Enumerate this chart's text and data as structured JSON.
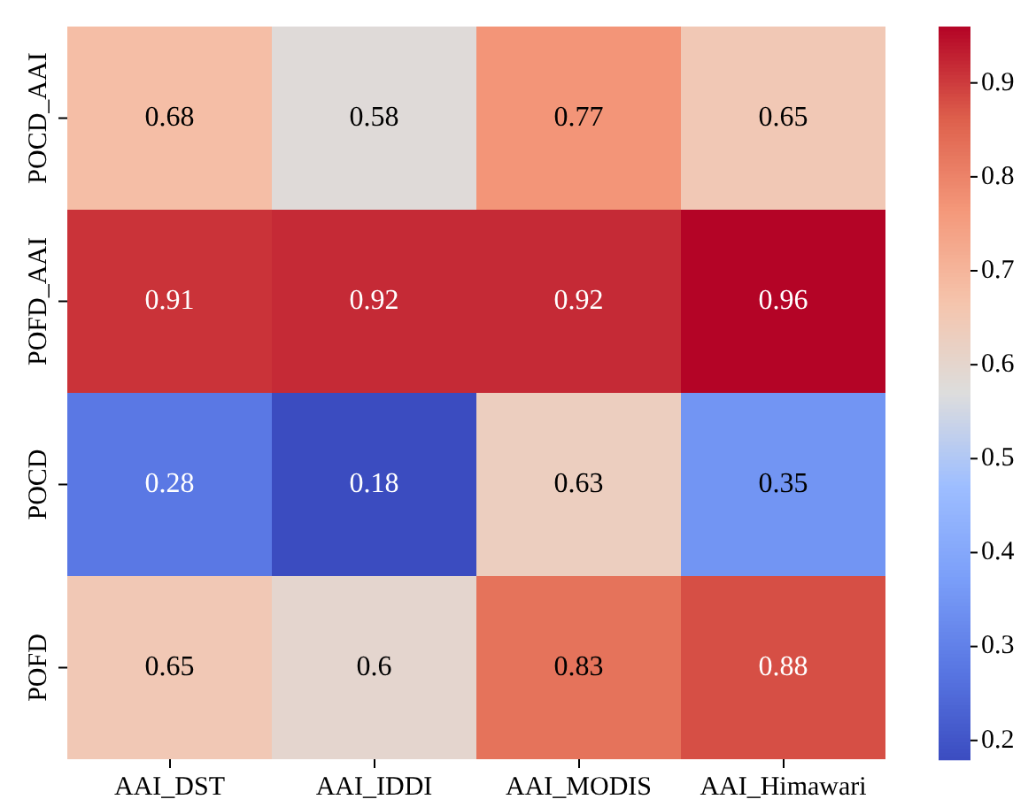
{
  "chart_data": {
    "type": "heatmap",
    "categories": [
      "AAI_DST",
      "AAI_IDDI",
      "AAI_MODIS",
      "AAI_Himawari"
    ],
    "y_categories": [
      "POCD_AAI",
      "POFD_AAI",
      "POCD",
      "POFD"
    ],
    "cells": [
      [
        0.68,
        0.58,
        0.77,
        0.65
      ],
      [
        0.91,
        0.92,
        0.92,
        0.96
      ],
      [
        0.28,
        0.18,
        0.63,
        0.35
      ],
      [
        0.65,
        0.6,
        0.83,
        0.88
      ]
    ],
    "clim": [
      0.18,
      0.96
    ],
    "cticks": [
      0.2,
      0.3,
      0.4,
      0.5,
      0.6,
      0.7,
      0.8,
      0.9
    ],
    "data_labels": true
  }
}
